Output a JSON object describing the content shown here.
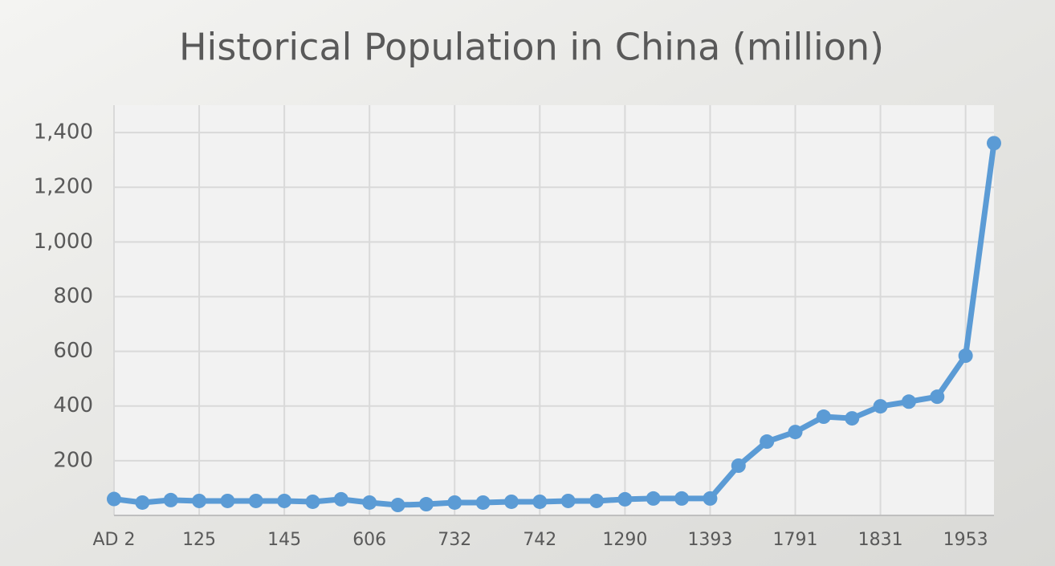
{
  "chart_data": {
    "type": "line",
    "title": "Historical Population in China (million)",
    "categories": [
      "AD 2",
      null,
      null,
      "125",
      null,
      null,
      "145",
      null,
      null,
      "606",
      null,
      null,
      "732",
      null,
      null,
      "742",
      null,
      null,
      "1290",
      null,
      null,
      "1393",
      null,
      null,
      "1791",
      null,
      null,
      "1831",
      null,
      null,
      "1953",
      null
    ],
    "values": [
      60,
      47,
      56,
      53,
      53,
      53,
      53,
      50,
      59,
      47,
      38,
      41,
      47,
      47,
      50,
      50,
      53,
      53,
      59,
      62,
      62,
      62,
      182,
      270,
      305,
      361,
      355,
      399,
      416,
      434,
      584,
      1361
    ],
    "color": "#5b9bd5",
    "ylim": [
      0,
      1500
    ],
    "yticks": [
      200,
      400,
      600,
      800,
      {
        "value": 1000,
        "label": "1,000"
      },
      {
        "value": 1200,
        "label": "1,200"
      },
      {
        "value": 1400,
        "label": "1,400"
      }
    ],
    "grid": true
  }
}
